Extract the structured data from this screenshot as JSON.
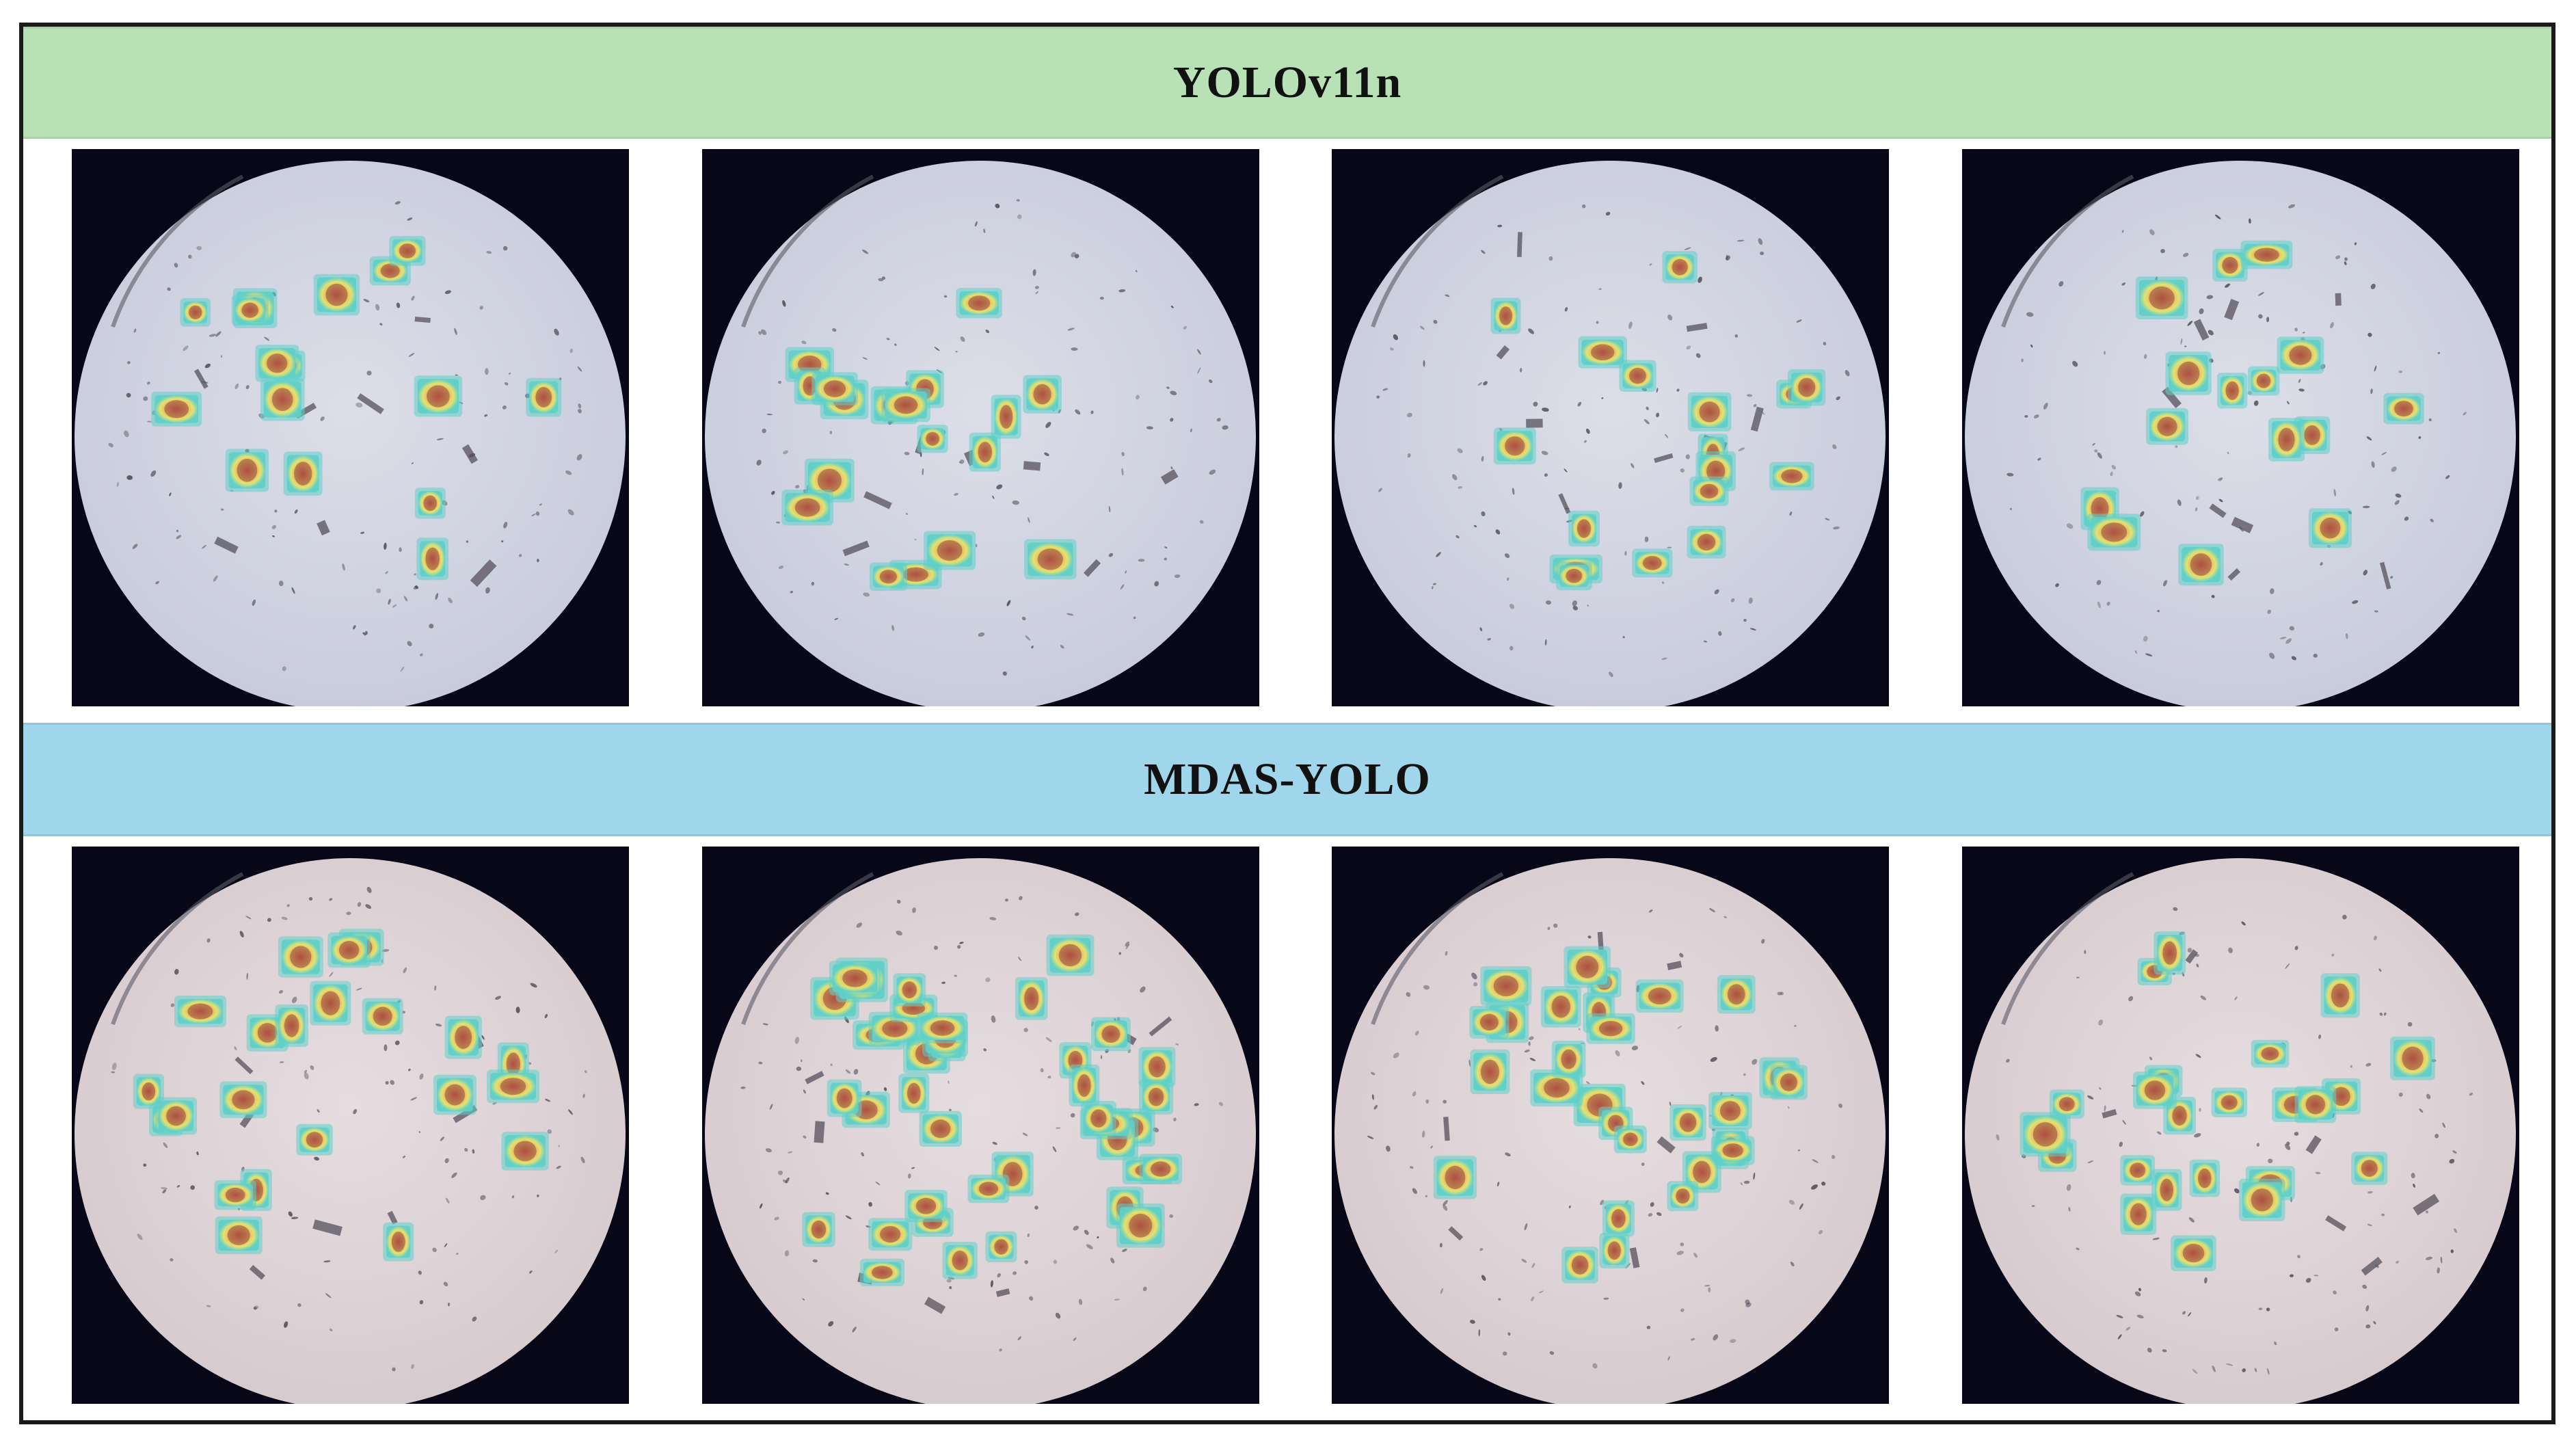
{
  "figure": {
    "rows": [
      {
        "title": "YOLOv11n",
        "banner_color": "#b8e2b5",
        "dish_tint": "#c9ccdc",
        "panels": [
          {
            "id": "yolo-1",
            "detections": 16
          },
          {
            "id": "yolo-2",
            "detections": 18
          },
          {
            "id": "yolo-3",
            "detections": 17
          },
          {
            "id": "yolo-4",
            "detections": 15
          }
        ]
      },
      {
        "title": "MDAS-YOLO",
        "banner_color": "#9fd6eb",
        "dish_tint": "#d8cbcf",
        "panels": [
          {
            "id": "mdas-1",
            "detections": 22
          },
          {
            "id": "mdas-2",
            "detections": 40
          },
          {
            "id": "mdas-3",
            "detections": 28
          },
          {
            "id": "mdas-4",
            "detections": 23
          }
        ]
      }
    ]
  }
}
